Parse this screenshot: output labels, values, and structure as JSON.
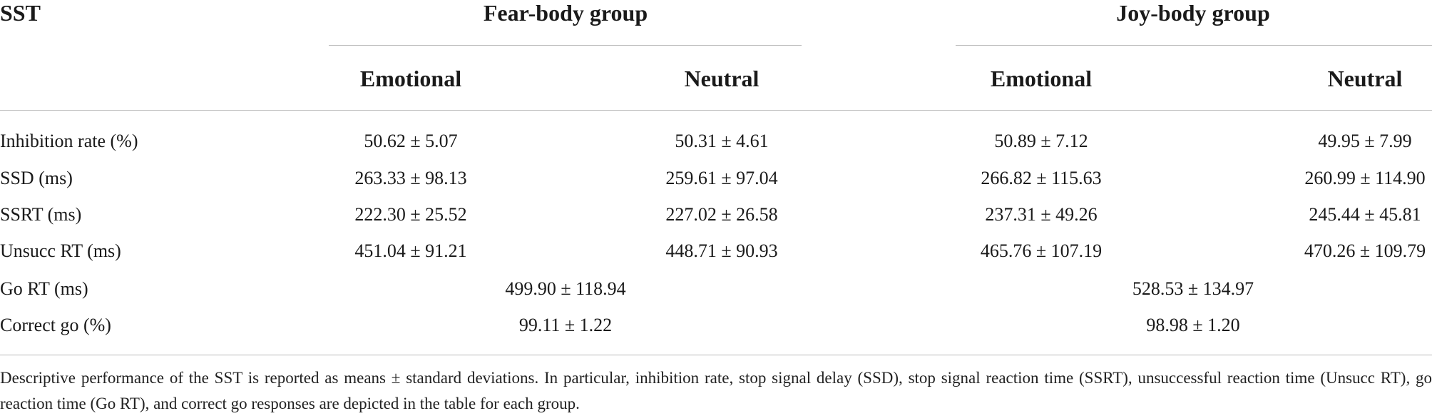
{
  "header": {
    "title": "SST"
  },
  "groups": [
    {
      "title": "Fear-body group",
      "columns": [
        "Emotional",
        "Neutral"
      ]
    },
    {
      "title": "Joy-body group",
      "columns": [
        "Emotional",
        "Neutral"
      ]
    }
  ],
  "rows": [
    {
      "label": "Inhibition rate (%)",
      "values": [
        "50.62 ± 5.07",
        "50.31 ± 4.61",
        "50.89 ± 7.12",
        "49.95 ± 7.99"
      ]
    },
    {
      "label": "SSD (ms)",
      "values": [
        "263.33 ± 98.13",
        "259.61 ± 97.04",
        "266.82 ± 115.63",
        "260.99 ± 114.90"
      ]
    },
    {
      "label": "SSRT (ms)",
      "values": [
        "222.30 ± 25.52",
        "227.02 ± 26.58",
        "237.31 ± 49.26",
        "245.44 ± 45.81"
      ]
    },
    {
      "label": "Unsucc RT (ms)",
      "values": [
        "451.04 ± 91.21",
        "448.71 ± 90.93",
        "465.76 ± 107.19",
        "470.26 ± 109.79"
      ]
    },
    {
      "label": "Go RT (ms)",
      "values": [
        "499.90 ± 118.94",
        "528.53 ± 134.97"
      ]
    },
    {
      "label": "Correct go (%)",
      "values": [
        "99.11 ± 1.22",
        "98.98 ± 1.20"
      ]
    }
  ],
  "footnote": "Descriptive performance of the SST is reported as means ± standard deviations. In particular, inhibition rate, stop signal delay (SSD), stop signal reaction time (SSRT), unsuccessful reaction time (Unsucc RT), go reaction time (Go RT), and correct go responses are depicted in the table for each group."
}
